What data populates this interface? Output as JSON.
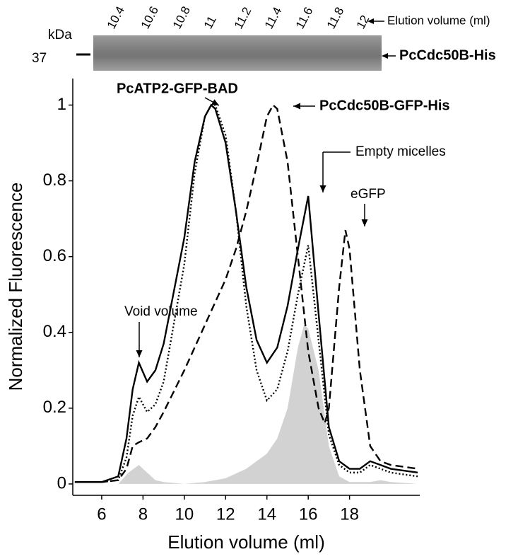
{
  "gel": {
    "lanes": [
      "10.4",
      "10.6",
      "10.8",
      "11",
      "11.2",
      "11.4",
      "11.6",
      "11.8",
      "12"
    ],
    "lane_axis_label": "Elution volume (ml)",
    "unit": "kDa",
    "marker": "37",
    "band_label": "PcCdc50B-His"
  },
  "chart_data": {
    "type": "line",
    "x_label": "Elution volume (ml)",
    "y_label": "Normalized Fluorescence",
    "xlim": [
      4.6,
      21.4
    ],
    "ylim": [
      -0.03,
      1.07
    ],
    "xticks": [
      6,
      8,
      10,
      12,
      14,
      16,
      18
    ],
    "yticks": [
      0,
      0.2,
      0.4,
      0.6,
      0.8,
      1
    ],
    "annotations": [
      "Void volume",
      "PcATP2-GFP-BAD",
      "PcCdc50B-GFP-His",
      "Empty micelles",
      "eGFP"
    ],
    "series": [
      {
        "style": "area",
        "color": "#d2d2d2",
        "x": [
          4.7,
          6.8,
          7.3,
          7.8,
          8.2,
          8.6,
          9,
          10,
          11,
          12,
          13,
          14,
          14.5,
          15,
          15.5,
          15.8,
          16,
          16.5,
          17,
          17.5,
          18,
          19,
          19.5,
          20,
          21.3
        ],
        "values": [
          0,
          0,
          0.03,
          0.05,
          0.03,
          0.01,
          0.005,
          0,
          0.005,
          0.015,
          0.04,
          0.08,
          0.12,
          0.2,
          0.36,
          0.42,
          0.41,
          0.3,
          0.1,
          0.02,
          0.005,
          0.005,
          0.01,
          0.005,
          0
        ]
      },
      {
        "style": "solid",
        "color": "#000000",
        "x": [
          4.7,
          6,
          6.8,
          7.2,
          7.5,
          7.8,
          8.2,
          8.6,
          9,
          10,
          10.5,
          11,
          11.3,
          11.5,
          12,
          12.5,
          13,
          13.5,
          14,
          14.5,
          15,
          15.5,
          16,
          16.5,
          17,
          17.5,
          18,
          18.5,
          19,
          19.5,
          20,
          21.3
        ],
        "values": [
          0.005,
          0.005,
          0.02,
          0.12,
          0.25,
          0.32,
          0.27,
          0.3,
          0.37,
          0.65,
          0.85,
          0.97,
          1,
          0.99,
          0.9,
          0.72,
          0.52,
          0.38,
          0.32,
          0.36,
          0.47,
          0.62,
          0.76,
          0.45,
          0.15,
          0.06,
          0.04,
          0.04,
          0.06,
          0.05,
          0.04,
          0.03
        ]
      },
      {
        "style": "dotted",
        "color": "#000000",
        "x": [
          4.7,
          6,
          6.8,
          7.2,
          7.5,
          7.8,
          8.2,
          8.6,
          9,
          10,
          10.5,
          11,
          11.3,
          11.5,
          12,
          12.5,
          13,
          13.5,
          14,
          14.5,
          15,
          15.5,
          16,
          16.5,
          17,
          17.5,
          18,
          18.5,
          19,
          19.5,
          20,
          21.3
        ],
        "values": [
          0.005,
          0.005,
          0.01,
          0.07,
          0.18,
          0.23,
          0.19,
          0.21,
          0.27,
          0.58,
          0.82,
          0.97,
          1,
          1,
          0.92,
          0.72,
          0.47,
          0.3,
          0.22,
          0.25,
          0.35,
          0.5,
          0.63,
          0.38,
          0.13,
          0.05,
          0.03,
          0.03,
          0.05,
          0.04,
          0.03,
          0.02
        ]
      },
      {
        "style": "dashed",
        "color": "#000000",
        "x": [
          4.7,
          6,
          6.8,
          7.2,
          7.5,
          7.8,
          8.2,
          8.6,
          9,
          10,
          10.5,
          11,
          11.5,
          12,
          12.5,
          13,
          13.5,
          14,
          14.3,
          14.5,
          15,
          15.5,
          16,
          16.5,
          16.8,
          17,
          17.5,
          17.8,
          18,
          18.5,
          19,
          19.5,
          20,
          21.3
        ],
        "values": [
          0.005,
          0.005,
          0.01,
          0.04,
          0.1,
          0.11,
          0.12,
          0.15,
          0.19,
          0.3,
          0.36,
          0.42,
          0.48,
          0.54,
          0.62,
          0.72,
          0.84,
          0.97,
          1,
          0.99,
          0.85,
          0.6,
          0.35,
          0.2,
          0.16,
          0.2,
          0.52,
          0.67,
          0.62,
          0.3,
          0.1,
          0.06,
          0.05,
          0.04
        ]
      }
    ]
  }
}
